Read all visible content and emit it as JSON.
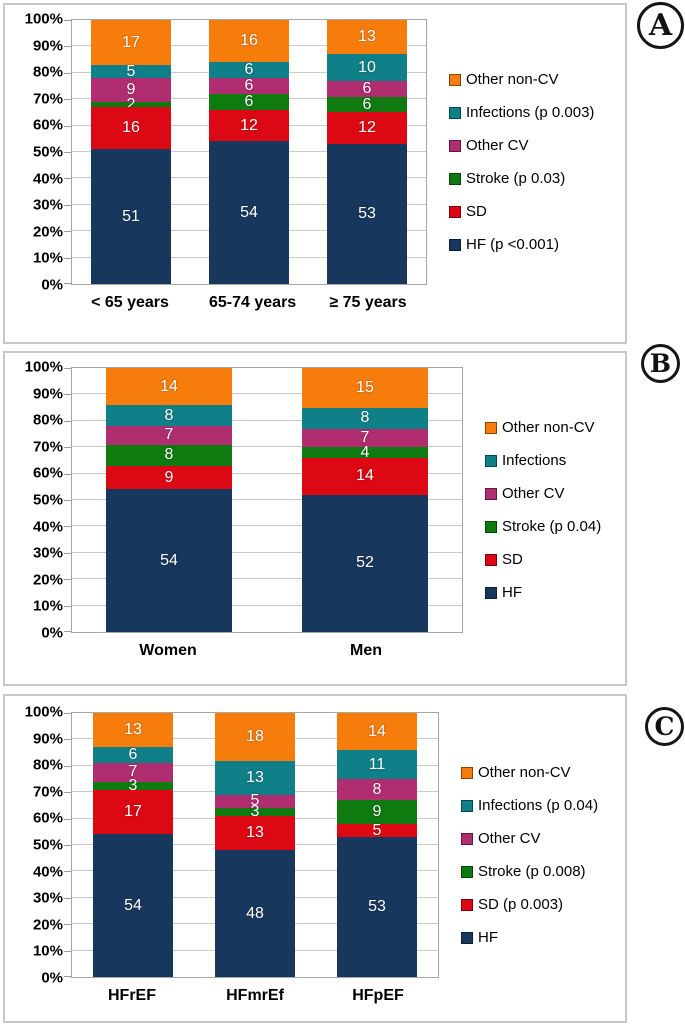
{
  "chart_data": [
    {
      "type": "bar",
      "stacked": true,
      "panel_label": "A",
      "unit": "%",
      "ylim": [
        0,
        100
      ],
      "grid": true,
      "legend_position": "right",
      "y_ticks": [
        "100%",
        "90%",
        "80%",
        "70%",
        "60%",
        "50%",
        "40%",
        "30%",
        "20%",
        "10%",
        "0%"
      ],
      "categories": [
        "< 65 years",
        "65-74 years",
        "≥ 75 years"
      ],
      "series": [
        {
          "name": "HF (p <0.001)",
          "color": "#17375D",
          "values": [
            51,
            54,
            53
          ]
        },
        {
          "name": "SD",
          "color": "#DC0814",
          "values": [
            16,
            12,
            12
          ]
        },
        {
          "name": "Stroke (p 0.03)",
          "color": "#0E7A10",
          "values": [
            2,
            6,
            6
          ]
        },
        {
          "name": "Other CV",
          "color": "#B02D70",
          "values": [
            9,
            6,
            6
          ]
        },
        {
          "name": "Infections (p 0.003)",
          "color": "#0F7F88",
          "values": [
            5,
            6,
            10
          ]
        },
        {
          "name": "Other non-CV",
          "color": "#F67C0C",
          "values": [
            17,
            16,
            13
          ]
        }
      ]
    },
    {
      "type": "bar",
      "stacked": true,
      "panel_label": "B",
      "unit": "%",
      "ylim": [
        0,
        100
      ],
      "grid": true,
      "legend_position": "right",
      "y_ticks": [
        "100%",
        "90%",
        "80%",
        "70%",
        "60%",
        "50%",
        "40%",
        "30%",
        "20%",
        "10%",
        "0%"
      ],
      "categories": [
        "Women",
        "Men"
      ],
      "series": [
        {
          "name": "HF",
          "color": "#17375D",
          "values": [
            54,
            52
          ]
        },
        {
          "name": "SD",
          "color": "#DC0814",
          "values": [
            9,
            14
          ]
        },
        {
          "name": "Stroke (p 0.04)",
          "color": "#0E7A10",
          "values": [
            8,
            4
          ]
        },
        {
          "name": "Other CV",
          "color": "#B02D70",
          "values": [
            7,
            7
          ]
        },
        {
          "name": "Infections",
          "color": "#0F7F88",
          "values": [
            8,
            8
          ]
        },
        {
          "name": "Other non-CV",
          "color": "#F67C0C",
          "values": [
            14,
            15
          ]
        }
      ]
    },
    {
      "type": "bar",
      "stacked": true,
      "panel_label": "C",
      "unit": "%",
      "ylim": [
        0,
        100
      ],
      "grid": true,
      "legend_position": "right",
      "y_ticks": [
        "100%",
        "90%",
        "80%",
        "70%",
        "60%",
        "50%",
        "40%",
        "30%",
        "20%",
        "10%",
        "0%"
      ],
      "categories": [
        "HFrEF",
        "HFmrEf",
        "HFpEF"
      ],
      "series": [
        {
          "name": "HF",
          "color": "#17375D",
          "values": [
            54,
            48,
            53
          ]
        },
        {
          "name": "SD (p 0.003)",
          "color": "#DC0814",
          "values": [
            17,
            13,
            5
          ]
        },
        {
          "name": "Stroke (p 0.008)",
          "color": "#0E7A10",
          "values": [
            3,
            3,
            9
          ]
        },
        {
          "name": "Other CV",
          "color": "#B02D70",
          "values": [
            7,
            5,
            8
          ]
        },
        {
          "name": "Infections (p 0.04)",
          "color": "#0F7F88",
          "values": [
            6,
            13,
            11
          ]
        },
        {
          "name": "Other non-CV",
          "color": "#F67C0C",
          "values": [
            13,
            18,
            14
          ]
        }
      ]
    }
  ]
}
